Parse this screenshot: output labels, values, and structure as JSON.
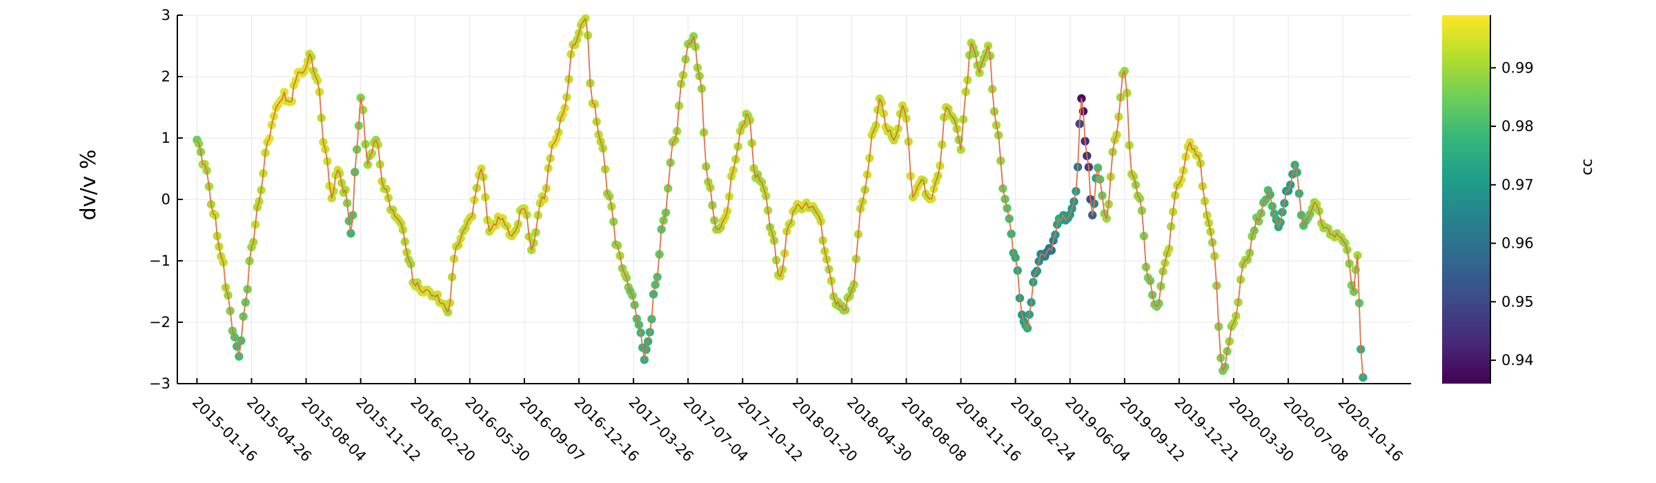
{
  "chart_data": {
    "type": "scatter",
    "title": "",
    "xlabel": "",
    "ylabel": "dv/v %",
    "ylim": [
      -3,
      3
    ],
    "xlim": [
      "2014-12-11",
      "2021-02-18"
    ],
    "x_tick_labels": [
      "2015-01-16",
      "2015-04-26",
      "2015-08-04",
      "2015-11-12",
      "2016-02-20",
      "2016-05-30",
      "2016-09-07",
      "2016-12-16",
      "2017-03-26",
      "2017-07-04",
      "2017-10-12",
      "2018-01-20",
      "2018-04-30",
      "2018-08-08",
      "2018-11-16",
      "2019-02-24",
      "2019-06-04",
      "2019-09-12",
      "2019-12-21",
      "2020-03-30",
      "2020-07-08",
      "2020-10-16"
    ],
    "y_ticks": [
      -3,
      -2,
      -1,
      0,
      1,
      2,
      3
    ],
    "y_tick_labels": [
      "−3",
      "−2",
      "−1",
      "0",
      "1",
      "2",
      "3"
    ],
    "grid": true,
    "line_color": "#e26f46",
    "colorbar": {
      "label": "cc",
      "range": [
        0.936,
        0.999
      ],
      "ticks": [
        0.94,
        0.95,
        0.96,
        0.97,
        0.98,
        0.99
      ],
      "tick_labels": [
        "0.94",
        "0.95",
        "0.96",
        "0.97",
        "0.98",
        "0.99"
      ],
      "colormap": "viridis",
      "stops": [
        "#440154",
        "#482878",
        "#3e4989",
        "#31688e",
        "#26828e",
        "#1f9e89",
        "#35b779",
        "#6ece58",
        "#b5de2b",
        "#fde725"
      ]
    },
    "keypoints": [
      {
        "x": "2015-01-16",
        "dvv": 0.95,
        "cc": 0.985
      },
      {
        "x": "2015-01-30",
        "dvv": 0.55,
        "cc": 0.99
      },
      {
        "x": "2015-02-15",
        "dvv": -0.2,
        "cc": 0.992
      },
      {
        "x": "2015-03-01",
        "dvv": -0.9,
        "cc": 0.993
      },
      {
        "x": "2015-03-14",
        "dvv": -1.6,
        "cc": 0.99
      },
      {
        "x": "2015-03-26",
        "dvv": -2.3,
        "cc": 0.982
      },
      {
        "x": "2015-04-03",
        "dvv": -2.55,
        "cc": 0.978
      },
      {
        "x": "2015-04-15",
        "dvv": -1.7,
        "cc": 0.985
      },
      {
        "x": "2015-04-26",
        "dvv": -0.8,
        "cc": 0.99
      },
      {
        "x": "2015-05-10",
        "dvv": 0.0,
        "cc": 0.993
      },
      {
        "x": "2015-05-25",
        "dvv": 0.9,
        "cc": 0.995
      },
      {
        "x": "2015-06-10",
        "dvv": 1.5,
        "cc": 0.996
      },
      {
        "x": "2015-06-25",
        "dvv": 1.7,
        "cc": 0.996
      },
      {
        "x": "2015-07-05",
        "dvv": 1.55,
        "cc": 0.995
      },
      {
        "x": "2015-07-20",
        "dvv": 2.05,
        "cc": 0.996
      },
      {
        "x": "2015-08-04",
        "dvv": 2.15,
        "cc": 0.995
      },
      {
        "x": "2015-08-10",
        "dvv": 2.4,
        "cc": 0.992
      },
      {
        "x": "2015-08-25",
        "dvv": 1.9,
        "cc": 0.993
      },
      {
        "x": "2015-09-08",
        "dvv": 0.8,
        "cc": 0.994
      },
      {
        "x": "2015-09-20",
        "dvv": 0.0,
        "cc": 0.994
      },
      {
        "x": "2015-10-01",
        "dvv": 0.5,
        "cc": 0.994
      },
      {
        "x": "2015-10-15",
        "dvv": 0.1,
        "cc": 0.99
      },
      {
        "x": "2015-10-25",
        "dvv": -0.55,
        "cc": 0.978
      },
      {
        "x": "2015-11-05",
        "dvv": 0.8,
        "cc": 0.985
      },
      {
        "x": "2015-11-12",
        "dvv": 1.7,
        "cc": 0.988
      },
      {
        "x": "2015-11-25",
        "dvv": 0.6,
        "cc": 0.99
      },
      {
        "x": "2015-12-10",
        "dvv": 1.0,
        "cc": 0.99
      },
      {
        "x": "2015-12-25",
        "dvv": 0.2,
        "cc": 0.992
      },
      {
        "x": "2016-01-10",
        "dvv": -0.2,
        "cc": 0.993
      },
      {
        "x": "2016-01-25",
        "dvv": -0.4,
        "cc": 0.993
      },
      {
        "x": "2016-02-08",
        "dvv": -1.0,
        "cc": 0.99
      },
      {
        "x": "2016-02-20",
        "dvv": -1.4,
        "cc": 0.993
      },
      {
        "x": "2016-03-10",
        "dvv": -1.5,
        "cc": 0.994
      },
      {
        "x": "2016-04-01",
        "dvv": -1.6,
        "cc": 0.993
      },
      {
        "x": "2016-04-20",
        "dvv": -1.8,
        "cc": 0.992
      },
      {
        "x": "2016-05-05",
        "dvv": -0.8,
        "cc": 0.993
      },
      {
        "x": "2016-05-30",
        "dvv": -0.3,
        "cc": 0.994
      },
      {
        "x": "2016-06-20",
        "dvv": 0.5,
        "cc": 0.994
      },
      {
        "x": "2016-07-05",
        "dvv": -0.5,
        "cc": 0.994
      },
      {
        "x": "2016-07-25",
        "dvv": -0.3,
        "cc": 0.994
      },
      {
        "x": "2016-08-15",
        "dvv": -0.6,
        "cc": 0.994
      },
      {
        "x": "2016-09-07",
        "dvv": -0.1,
        "cc": 0.993
      },
      {
        "x": "2016-09-20",
        "dvv": -0.85,
        "cc": 0.99
      },
      {
        "x": "2016-10-10",
        "dvv": 0.0,
        "cc": 0.994
      },
      {
        "x": "2016-11-01",
        "dvv": 0.9,
        "cc": 0.995
      },
      {
        "x": "2016-11-20",
        "dvv": 1.5,
        "cc": 0.994
      },
      {
        "x": "2016-12-05",
        "dvv": 2.5,
        "cc": 0.994
      },
      {
        "x": "2016-12-20",
        "dvv": 2.8,
        "cc": 0.993
      },
      {
        "x": "2016-12-28",
        "dvv": 3.0,
        "cc": 0.992
      },
      {
        "x": "2017-01-10",
        "dvv": 1.6,
        "cc": 0.992
      },
      {
        "x": "2017-01-25",
        "dvv": 1.0,
        "cc": 0.992
      },
      {
        "x": "2017-02-10",
        "dvv": 0.0,
        "cc": 0.99
      },
      {
        "x": "2017-02-25",
        "dvv": -0.8,
        "cc": 0.988
      },
      {
        "x": "2017-03-10",
        "dvv": -1.2,
        "cc": 0.99
      },
      {
        "x": "2017-03-20",
        "dvv": -1.5,
        "cc": 0.985
      },
      {
        "x": "2017-04-05",
        "dvv": -2.0,
        "cc": 0.98
      },
      {
        "x": "2017-04-15",
        "dvv": -2.6,
        "cc": 0.975
      },
      {
        "x": "2017-04-25",
        "dvv": -2.2,
        "cc": 0.977
      },
      {
        "x": "2017-05-05",
        "dvv": -1.4,
        "cc": 0.98
      },
      {
        "x": "2017-05-20",
        "dvv": -0.3,
        "cc": 0.985
      },
      {
        "x": "2017-06-10",
        "dvv": 1.0,
        "cc": 0.99
      },
      {
        "x": "2017-06-25",
        "dvv": 2.0,
        "cc": 0.99
      },
      {
        "x": "2017-07-04",
        "dvv": 2.5,
        "cc": 0.99
      },
      {
        "x": "2017-07-14",
        "dvv": 2.6,
        "cc": 0.988
      },
      {
        "x": "2017-07-25",
        "dvv": 2.0,
        "cc": 0.99
      },
      {
        "x": "2017-08-10",
        "dvv": 0.3,
        "cc": 0.99
      },
      {
        "x": "2017-08-25",
        "dvv": -0.5,
        "cc": 0.99
      },
      {
        "x": "2017-09-10",
        "dvv": -0.3,
        "cc": 0.993
      },
      {
        "x": "2017-09-25",
        "dvv": 0.5,
        "cc": 0.993
      },
      {
        "x": "2017-10-12",
        "dvv": 1.2,
        "cc": 0.992
      },
      {
        "x": "2017-10-22",
        "dvv": 1.4,
        "cc": 0.99
      },
      {
        "x": "2017-11-05",
        "dvv": 0.4,
        "cc": 0.99
      },
      {
        "x": "2017-11-20",
        "dvv": 0.2,
        "cc": 0.99
      },
      {
        "x": "2017-12-05",
        "dvv": -0.6,
        "cc": 0.99
      },
      {
        "x": "2017-12-20",
        "dvv": -1.3,
        "cc": 0.993
      },
      {
        "x": "2018-01-05",
        "dvv": -0.4,
        "cc": 0.994
      },
      {
        "x": "2018-01-20",
        "dvv": -0.1,
        "cc": 0.994
      },
      {
        "x": "2018-02-10",
        "dvv": -0.1,
        "cc": 0.993
      },
      {
        "x": "2018-03-01",
        "dvv": -0.3,
        "cc": 0.993
      },
      {
        "x": "2018-03-15",
        "dvv": -1.0,
        "cc": 0.992
      },
      {
        "x": "2018-04-01",
        "dvv": -1.7,
        "cc": 0.99
      },
      {
        "x": "2018-04-15",
        "dvv": -1.8,
        "cc": 0.988
      },
      {
        "x": "2018-04-30",
        "dvv": -1.5,
        "cc": 0.99
      },
      {
        "x": "2018-05-20",
        "dvv": 0.0,
        "cc": 0.993
      },
      {
        "x": "2018-06-10",
        "dvv": 1.1,
        "cc": 0.994
      },
      {
        "x": "2018-06-20",
        "dvv": 1.6,
        "cc": 0.994
      },
      {
        "x": "2018-07-05",
        "dvv": 1.1,
        "cc": 0.994
      },
      {
        "x": "2018-07-20",
        "dvv": 1.0,
        "cc": 0.994
      },
      {
        "x": "2018-08-01",
        "dvv": 1.5,
        "cc": 0.994
      },
      {
        "x": "2018-08-08",
        "dvv": 1.3,
        "cc": 0.994
      },
      {
        "x": "2018-08-20",
        "dvv": 0.0,
        "cc": 0.994
      },
      {
        "x": "2018-09-05",
        "dvv": 0.3,
        "cc": 0.994
      },
      {
        "x": "2018-09-20",
        "dvv": 0.0,
        "cc": 0.994
      },
      {
        "x": "2018-10-05",
        "dvv": 0.4,
        "cc": 0.994
      },
      {
        "x": "2018-10-20",
        "dvv": 1.5,
        "cc": 0.993
      },
      {
        "x": "2018-11-05",
        "dvv": 1.3,
        "cc": 0.992
      },
      {
        "x": "2018-11-16",
        "dvv": 0.8,
        "cc": 0.99
      },
      {
        "x": "2018-11-25",
        "dvv": 1.8,
        "cc": 0.992
      },
      {
        "x": "2018-12-05",
        "dvv": 2.6,
        "cc": 0.99
      },
      {
        "x": "2018-12-20",
        "dvv": 2.1,
        "cc": 0.99
      },
      {
        "x": "2019-01-05",
        "dvv": 2.5,
        "cc": 0.99
      },
      {
        "x": "2019-01-20",
        "dvv": 1.2,
        "cc": 0.99
      },
      {
        "x": "2019-02-05",
        "dvv": 0.0,
        "cc": 0.985
      },
      {
        "x": "2019-02-24",
        "dvv": -0.9,
        "cc": 0.975
      },
      {
        "x": "2019-03-08",
        "dvv": -1.9,
        "cc": 0.97
      },
      {
        "x": "2019-03-18",
        "dvv": -2.05,
        "cc": 0.975
      },
      {
        "x": "2019-04-01",
        "dvv": -1.2,
        "cc": 0.97
      },
      {
        "x": "2019-04-15",
        "dvv": -0.9,
        "cc": 0.965
      },
      {
        "x": "2019-05-01",
        "dvv": -0.8,
        "cc": 0.96
      },
      {
        "x": "2019-05-15",
        "dvv": -0.3,
        "cc": 0.975
      },
      {
        "x": "2019-06-04",
        "dvv": -0.3,
        "cc": 0.97
      },
      {
        "x": "2019-06-15",
        "dvv": 0.1,
        "cc": 0.97
      },
      {
        "x": "2019-06-25",
        "dvv": 1.65,
        "cc": 0.938
      },
      {
        "x": "2019-07-05",
        "dvv": 0.7,
        "cc": 0.945
      },
      {
        "x": "2019-07-15",
        "dvv": -0.2,
        "cc": 0.955
      },
      {
        "x": "2019-07-25",
        "dvv": 0.5,
        "cc": 0.98
      },
      {
        "x": "2019-08-10",
        "dvv": -0.3,
        "cc": 0.99
      },
      {
        "x": "2019-08-25",
        "dvv": 1.0,
        "cc": 0.992
      },
      {
        "x": "2019-09-12",
        "dvv": 2.1,
        "cc": 0.99
      },
      {
        "x": "2019-09-25",
        "dvv": 0.4,
        "cc": 0.99
      },
      {
        "x": "2019-10-10",
        "dvv": 0.0,
        "cc": 0.99
      },
      {
        "x": "2019-10-25",
        "dvv": -1.3,
        "cc": 0.985
      },
      {
        "x": "2019-11-10",
        "dvv": -1.8,
        "cc": 0.985
      },
      {
        "x": "2019-11-25",
        "dvv": -1.0,
        "cc": 0.99
      },
      {
        "x": "2019-12-21",
        "dvv": 0.3,
        "cc": 0.994
      },
      {
        "x": "2020-01-10",
        "dvv": 0.9,
        "cc": 0.995
      },
      {
        "x": "2020-01-25",
        "dvv": 0.7,
        "cc": 0.994
      },
      {
        "x": "2020-02-10",
        "dvv": -0.2,
        "cc": 0.992
      },
      {
        "x": "2020-02-20",
        "dvv": -0.7,
        "cc": 0.99
      },
      {
        "x": "2020-03-10",
        "dvv": -2.8,
        "cc": 0.985
      },
      {
        "x": "2020-03-30",
        "dvv": -2.0,
        "cc": 0.99
      },
      {
        "x": "2020-04-20",
        "dvv": -1.0,
        "cc": 0.99
      },
      {
        "x": "2020-05-15",
        "dvv": -0.3,
        "cc": 0.985
      },
      {
        "x": "2020-06-01",
        "dvv": 0.1,
        "cc": 0.98
      },
      {
        "x": "2020-06-20",
        "dvv": -0.4,
        "cc": 0.975
      },
      {
        "x": "2020-07-08",
        "dvv": 0.2,
        "cc": 0.97
      },
      {
        "x": "2020-07-20",
        "dvv": 0.55,
        "cc": 0.975
      },
      {
        "x": "2020-08-05",
        "dvv": -0.4,
        "cc": 0.98
      },
      {
        "x": "2020-08-25",
        "dvv": -0.1,
        "cc": 0.99
      },
      {
        "x": "2020-09-15",
        "dvv": -0.5,
        "cc": 0.99
      },
      {
        "x": "2020-10-05",
        "dvv": -0.6,
        "cc": 0.99
      },
      {
        "x": "2020-10-20",
        "dvv": -0.7,
        "cc": 0.99
      },
      {
        "x": "2020-11-05",
        "dvv": -1.5,
        "cc": 0.985
      },
      {
        "x": "2020-11-12",
        "dvv": -0.9,
        "cc": 0.99
      },
      {
        "x": "2020-11-18",
        "dvv": -2.4,
        "cc": 0.975
      },
      {
        "x": "2020-11-22",
        "dvv": -2.9,
        "cc": 0.975
      }
    ]
  }
}
